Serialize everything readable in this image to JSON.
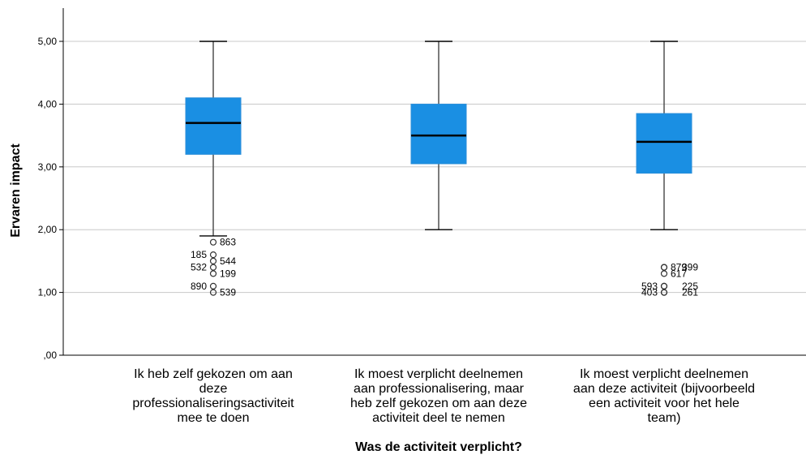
{
  "chart_data": {
    "type": "boxplot",
    "xlabel": "Was de activiteit verplicht?",
    "ylabel": "Ervaren impact",
    "ylim": [
      0,
      5.5
    ],
    "yticks": [
      0,
      1,
      2,
      3,
      4,
      5
    ],
    "ytick_labels": [
      ",00",
      "1,00",
      "2,00",
      "3,00",
      "4,00",
      "5,00"
    ],
    "grid": true,
    "box_color": "#1a8fe3",
    "categories": [
      {
        "label_lines": [
          "Ik heb zelf gekozen om aan",
          "deze",
          "professionaliseringsactiviteit",
          "mee te doen"
        ],
        "whisker_low": 1.9,
        "q1": 3.2,
        "median": 3.7,
        "q3": 4.1,
        "whisker_high": 5.0,
        "outliers": [
          {
            "y": 1.8,
            "label": "863"
          },
          {
            "y": 1.6,
            "label": "185"
          },
          {
            "y": 1.5,
            "label": "544"
          },
          {
            "y": 1.4,
            "label": "532"
          },
          {
            "y": 1.3,
            "label": "199"
          },
          {
            "y": 1.1,
            "label": "890"
          },
          {
            "y": 1.0,
            "label": "539"
          }
        ]
      },
      {
        "label_lines": [
          "Ik moest verplicht deelnemen",
          "aan professionalisering, maar",
          "heb zelf gekozen om aan deze",
          "activiteit deel te nemen"
        ],
        "whisker_low": 2.0,
        "q1": 3.05,
        "median": 3.5,
        "q3": 4.0,
        "whisker_high": 5.0,
        "outliers": []
      },
      {
        "label_lines": [
          "Ik moest verplicht deelnemen",
          "aan deze activiteit (bijvoorbeeld",
          "een activiteit voor het hele",
          "team)"
        ],
        "whisker_low": 2.0,
        "q1": 2.9,
        "median": 3.4,
        "q3": 3.85,
        "whisker_high": 5.0,
        "outliers": [
          {
            "y": 1.4,
            "label": "879"
          },
          {
            "y": 1.4,
            "label": "399"
          },
          {
            "y": 1.3,
            "label": "617"
          },
          {
            "y": 1.1,
            "label": "593"
          },
          {
            "y": 1.1,
            "label": "225"
          },
          {
            "y": 1.0,
            "label": "403"
          },
          {
            "y": 1.0,
            "label": "261"
          }
        ]
      }
    ]
  }
}
